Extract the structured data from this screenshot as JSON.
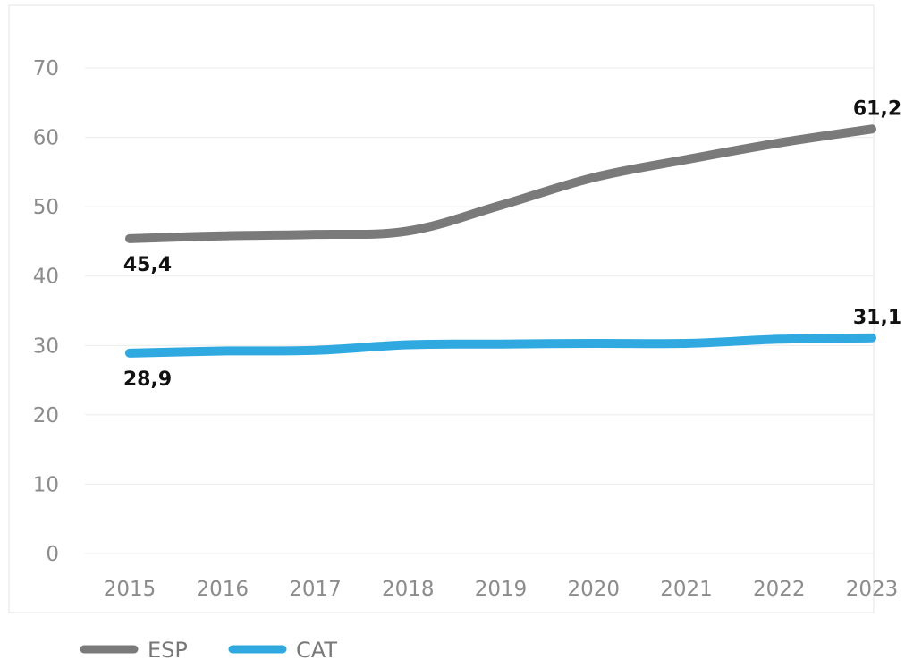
{
  "chart_data": {
    "type": "line",
    "title": "",
    "xlabel": "",
    "ylabel": "",
    "categories": [
      "2015",
      "2016",
      "2017",
      "2018",
      "2019",
      "2020",
      "2021",
      "2022",
      "2023"
    ],
    "ylim": [
      0,
      70
    ],
    "yticks": [
      "0",
      "10",
      "20",
      "30",
      "40",
      "50",
      "60",
      "70"
    ],
    "grid": true,
    "legend_position": "bottom-left",
    "series": [
      {
        "name": "ESP",
        "color": "#7a7a7a",
        "values": [
          45.4,
          45.8,
          46.0,
          46.5,
          50.2,
          54.2,
          56.8,
          59.2,
          61.2
        ],
        "labels": {
          "start": "45,4",
          "end": "61,2"
        }
      },
      {
        "name": "CAT",
        "color": "#2fa9df",
        "values": [
          28.9,
          29.2,
          29.3,
          30.1,
          30.2,
          30.3,
          30.3,
          30.9,
          31.1
        ],
        "labels": {
          "start": "28,9",
          "end": "31,1"
        }
      }
    ]
  }
}
